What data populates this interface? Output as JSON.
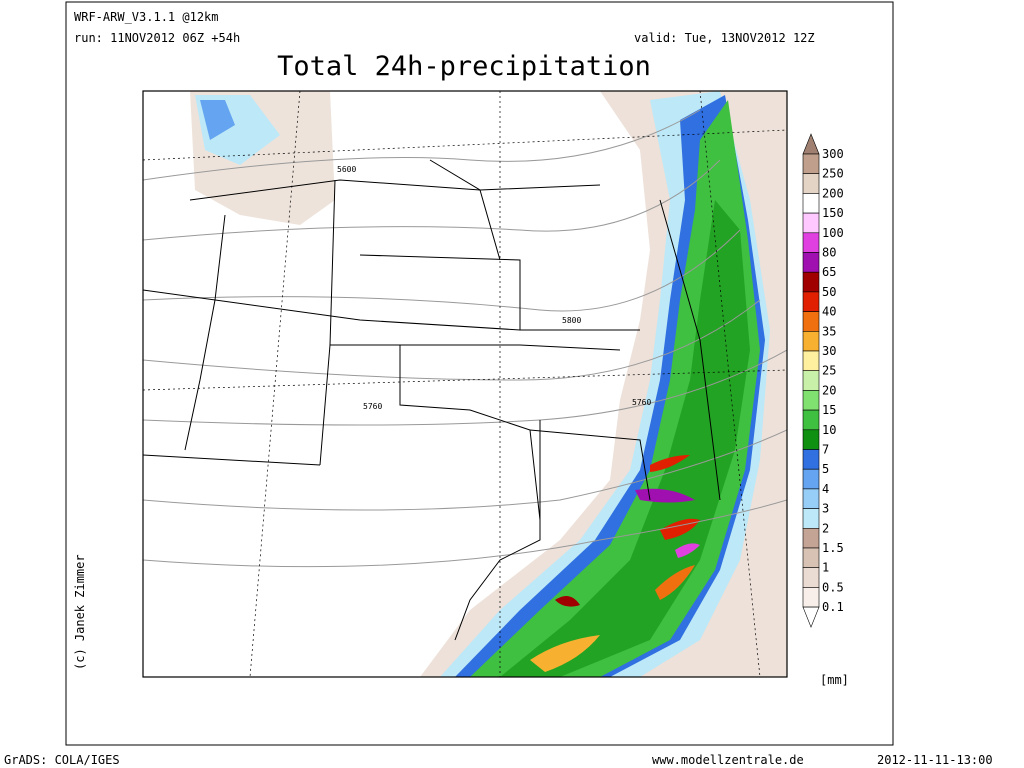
{
  "header": {
    "model": "WRF-ARW_V3.1.1 @12km",
    "run": "run: 11NOV2012 06Z +54h",
    "valid": "valid: Tue, 13NOV2012 12Z",
    "title": "Total 24h-precipitation"
  },
  "map": {
    "contour_labels": [
      "5600",
      "5800",
      "5760",
      "5760"
    ]
  },
  "colorbar": {
    "levels": [
      300,
      250,
      200,
      150,
      100,
      80,
      65,
      50,
      40,
      35,
      30,
      25,
      20,
      15,
      10,
      7,
      5,
      4,
      3,
      2,
      1.5,
      1,
      0.5,
      0.1
    ],
    "colors": [
      "#a08070",
      "#c0a08c",
      "#e4d4c6",
      "#ffffff",
      "#ffc8ff",
      "#e040e0",
      "#a010b0",
      "#a00000",
      "#e02000",
      "#f07010",
      "#f8b030",
      "#fff0a0",
      "#c8f0a8",
      "#80e070",
      "#40c040",
      "#109010",
      "#3070e0",
      "#64a4f0",
      "#96cef8",
      "#bce8f8",
      "#c4a494",
      "#d8c2b4",
      "#eadcd2",
      "#f8efea",
      "#ffffff"
    ],
    "unit": "[mm]"
  },
  "credit": "(c) Janek Zimmer",
  "footer": {
    "left": "GrADS: COLA/IGES",
    "center": "www.modellzentrale.de",
    "right": "2012-11-11-13:00"
  }
}
